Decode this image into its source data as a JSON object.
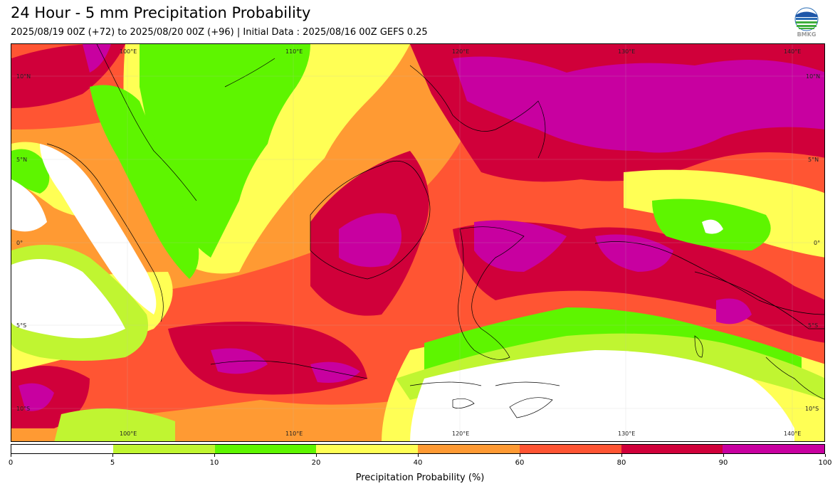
{
  "header": {
    "title": "24 Hour - 5 mm Precipitation Probability",
    "subtitle": "2025/08/19 00Z (+72) to 2025/08/20 00Z (+96) | Initial Data : 2025/08/16 00Z GEFS 0.25",
    "logo_text": "BMKG"
  },
  "map": {
    "region": "Maritime Continent / Indonesia",
    "lon_labels_top": [
      "100°E",
      "110°E",
      "120°E",
      "130°E",
      "140°E"
    ],
    "lon_labels_bottom": [
      "100°E",
      "110°E",
      "120°E",
      "130°E",
      "140°E"
    ],
    "lat_labels_left": [
      "10°N",
      "5°N",
      "0°",
      "5°S",
      "10°S"
    ],
    "lat_labels_right": [
      "10°N",
      "5°N",
      "0°",
      "5°S",
      "10°S"
    ]
  },
  "legend": {
    "label": "Precipitation Probability (%)",
    "ticks": [
      "0",
      "5",
      "10",
      "20",
      "40",
      "60",
      "80",
      "90",
      "100"
    ],
    "colors": [
      "#ffffff",
      "#c0f531",
      "#5ef500",
      "#ffff55",
      "#ff9a33",
      "#ff5533",
      "#d0003a",
      "#c800a0"
    ]
  }
}
